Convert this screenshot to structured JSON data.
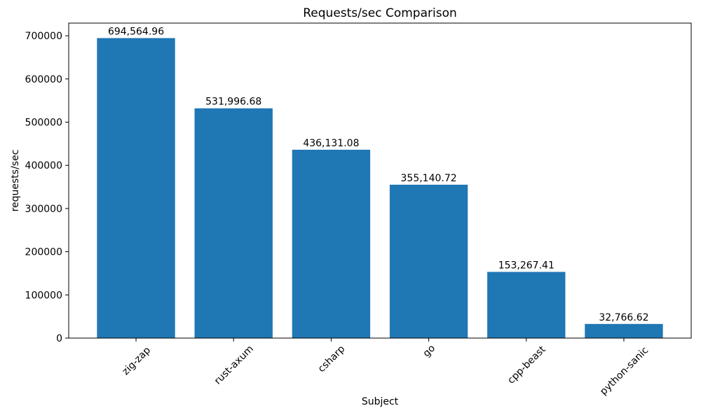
{
  "chart_data": {
    "type": "bar",
    "title": "Requests/sec Comparison",
    "xlabel": "Subject",
    "ylabel": "requests/sec",
    "categories": [
      "zig-zap",
      "rust-axum",
      "csharp",
      "go",
      "cpp-beast",
      "python-sanic"
    ],
    "values": [
      694564.96,
      531996.68,
      436131.08,
      355140.72,
      153267.41,
      32766.62
    ],
    "value_labels": [
      "694,564.96",
      "531,996.68",
      "436,131.08",
      "355,140.72",
      "153,267.41",
      "32,766.62"
    ],
    "yticks": [
      0,
      100000,
      200000,
      300000,
      400000,
      500000,
      600000,
      700000
    ],
    "ytick_labels": [
      "0",
      "100000",
      "200000",
      "300000",
      "400000",
      "500000",
      "600000",
      "700000"
    ],
    "ylim": [
      0,
      729293
    ],
    "x_tick_rotation_deg": 45,
    "bar_color": "#1f77b4",
    "grid": false,
    "legend_position": "none"
  }
}
